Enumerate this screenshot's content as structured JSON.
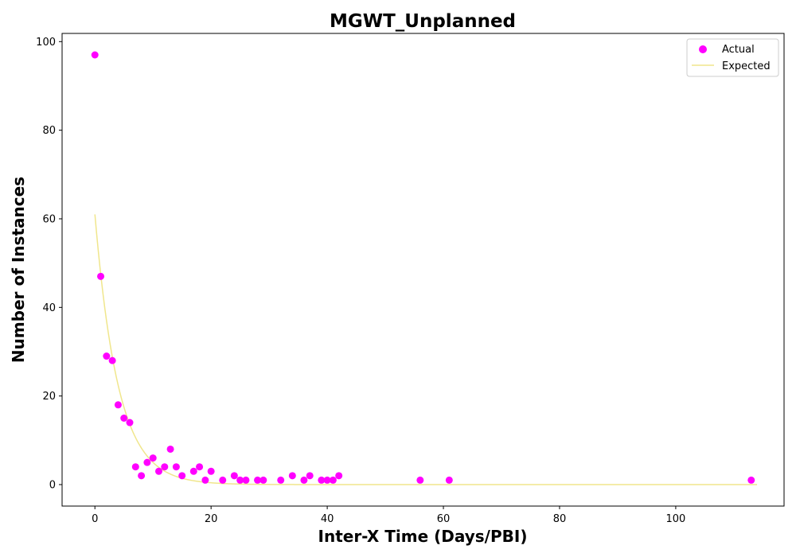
{
  "chart_data": {
    "type": "scatter",
    "title": "MGWT_Unplanned",
    "xlabel": "Inter-X Time (Days/PBI)",
    "ylabel": "Number of Instances",
    "xlim": [
      -5.65,
      118.65
    ],
    "ylim": [
      -4.85,
      101.85
    ],
    "xticks": [
      0,
      20,
      40,
      60,
      80,
      100
    ],
    "yticks": [
      0,
      20,
      40,
      60,
      80,
      100
    ],
    "grid": false,
    "legend_position": "top-right",
    "series": [
      {
        "name": "Actual",
        "kind": "scatter",
        "color": "#ff00ff",
        "x": [
          0,
          1,
          2,
          3,
          4,
          5,
          6,
          7,
          8,
          9,
          10,
          11,
          12,
          13,
          14,
          15,
          17,
          18,
          19,
          20,
          22,
          24,
          25,
          26,
          28,
          29,
          32,
          34,
          36,
          37,
          39,
          40,
          41,
          42,
          56,
          61,
          113
        ],
        "y": [
          97,
          47,
          29,
          28,
          18,
          15,
          14,
          4,
          2,
          5,
          6,
          3,
          4,
          8,
          4,
          2,
          3,
          4,
          1,
          3,
          1,
          2,
          1,
          1,
          1,
          1,
          1,
          2,
          1,
          2,
          1,
          1,
          1,
          2,
          1,
          1,
          1
        ]
      },
      {
        "name": "Expected",
        "kind": "line",
        "color": "#f0e68c",
        "model": "exponential",
        "amplitude": 61,
        "rate": 0.25,
        "x_range": [
          0,
          114
        ]
      }
    ]
  }
}
